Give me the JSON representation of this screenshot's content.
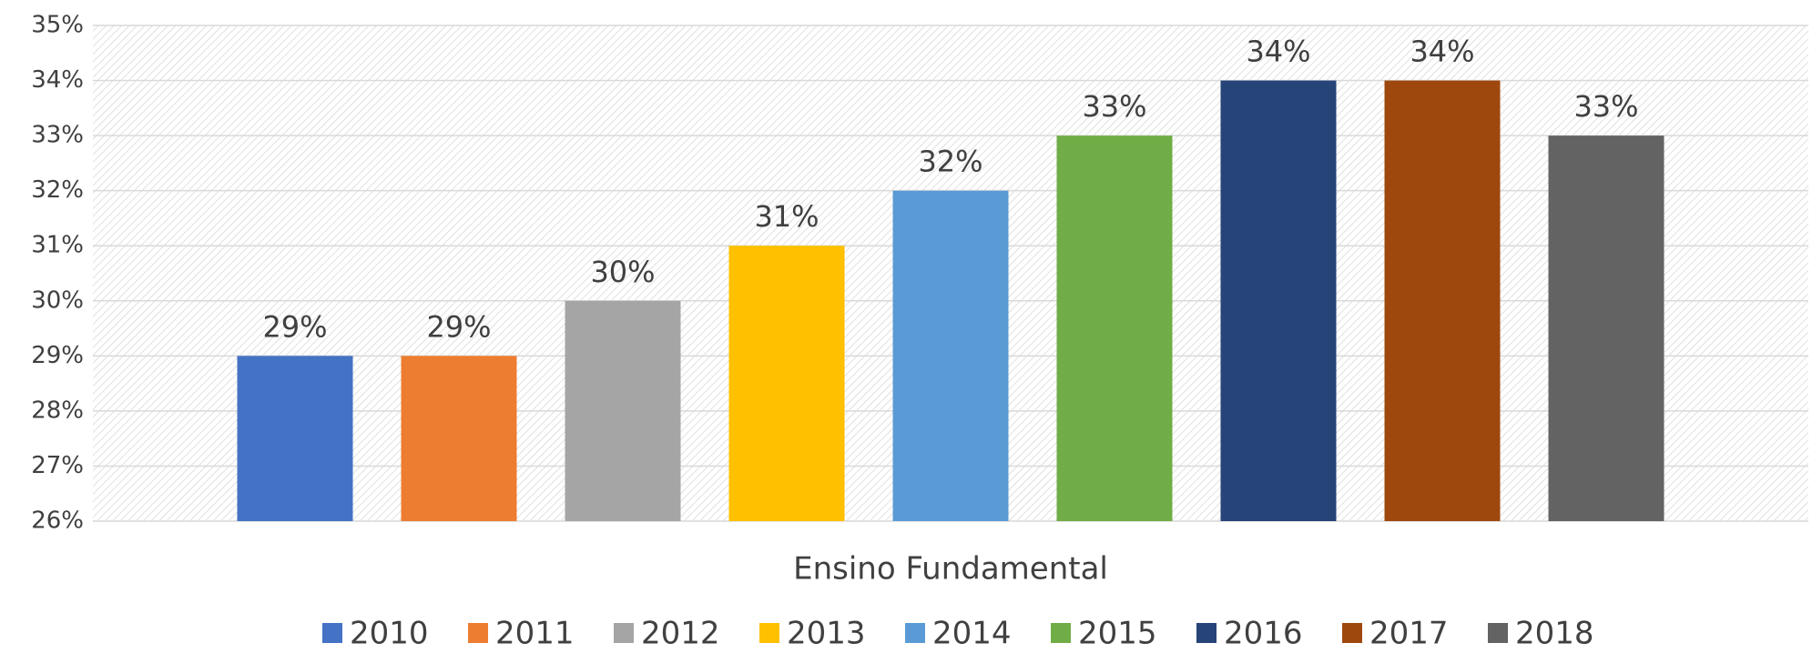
{
  "chart_data": {
    "type": "bar",
    "categories": [
      "Ensino Fundamental"
    ],
    "series": [
      {
        "name": "2010",
        "color": "#4472c4",
        "values": [
          29
        ],
        "value_labels": [
          "29%"
        ]
      },
      {
        "name": "2011",
        "color": "#ed7d31",
        "values": [
          29
        ],
        "value_labels": [
          "29%"
        ]
      },
      {
        "name": "2012",
        "color": "#a5a5a5",
        "values": [
          30
        ],
        "value_labels": [
          "30%"
        ]
      },
      {
        "name": "2013",
        "color": "#ffc000",
        "values": [
          31
        ],
        "value_labels": [
          "31%"
        ]
      },
      {
        "name": "2014",
        "color": "#5b9bd5",
        "values": [
          32
        ],
        "value_labels": [
          "32%"
        ]
      },
      {
        "name": "2015",
        "color": "#70ad47",
        "values": [
          33
        ],
        "value_labels": [
          "33%"
        ]
      },
      {
        "name": "2016",
        "color": "#264478",
        "values": [
          34
        ],
        "value_labels": [
          "34%"
        ]
      },
      {
        "name": "2017",
        "color": "#9e480e",
        "values": [
          34
        ],
        "value_labels": [
          "34%"
        ]
      },
      {
        "name": "2018",
        "color": "#636363",
        "values": [
          33
        ],
        "value_labels": [
          "33%"
        ]
      }
    ],
    "ylim": [
      26,
      35
    ],
    "yticks": [
      {
        "value": 26,
        "label": "26%"
      },
      {
        "value": 27,
        "label": "27%"
      },
      {
        "value": 28,
        "label": "28%"
      },
      {
        "value": 29,
        "label": "29%"
      },
      {
        "value": 30,
        "label": "30%"
      },
      {
        "value": 31,
        "label": "31%"
      },
      {
        "value": 32,
        "label": "32%"
      },
      {
        "value": 33,
        "label": "33%"
      },
      {
        "value": 34,
        "label": "34%"
      },
      {
        "value": 35,
        "label": "35%"
      }
    ],
    "grid": true,
    "legend": "bottom"
  }
}
